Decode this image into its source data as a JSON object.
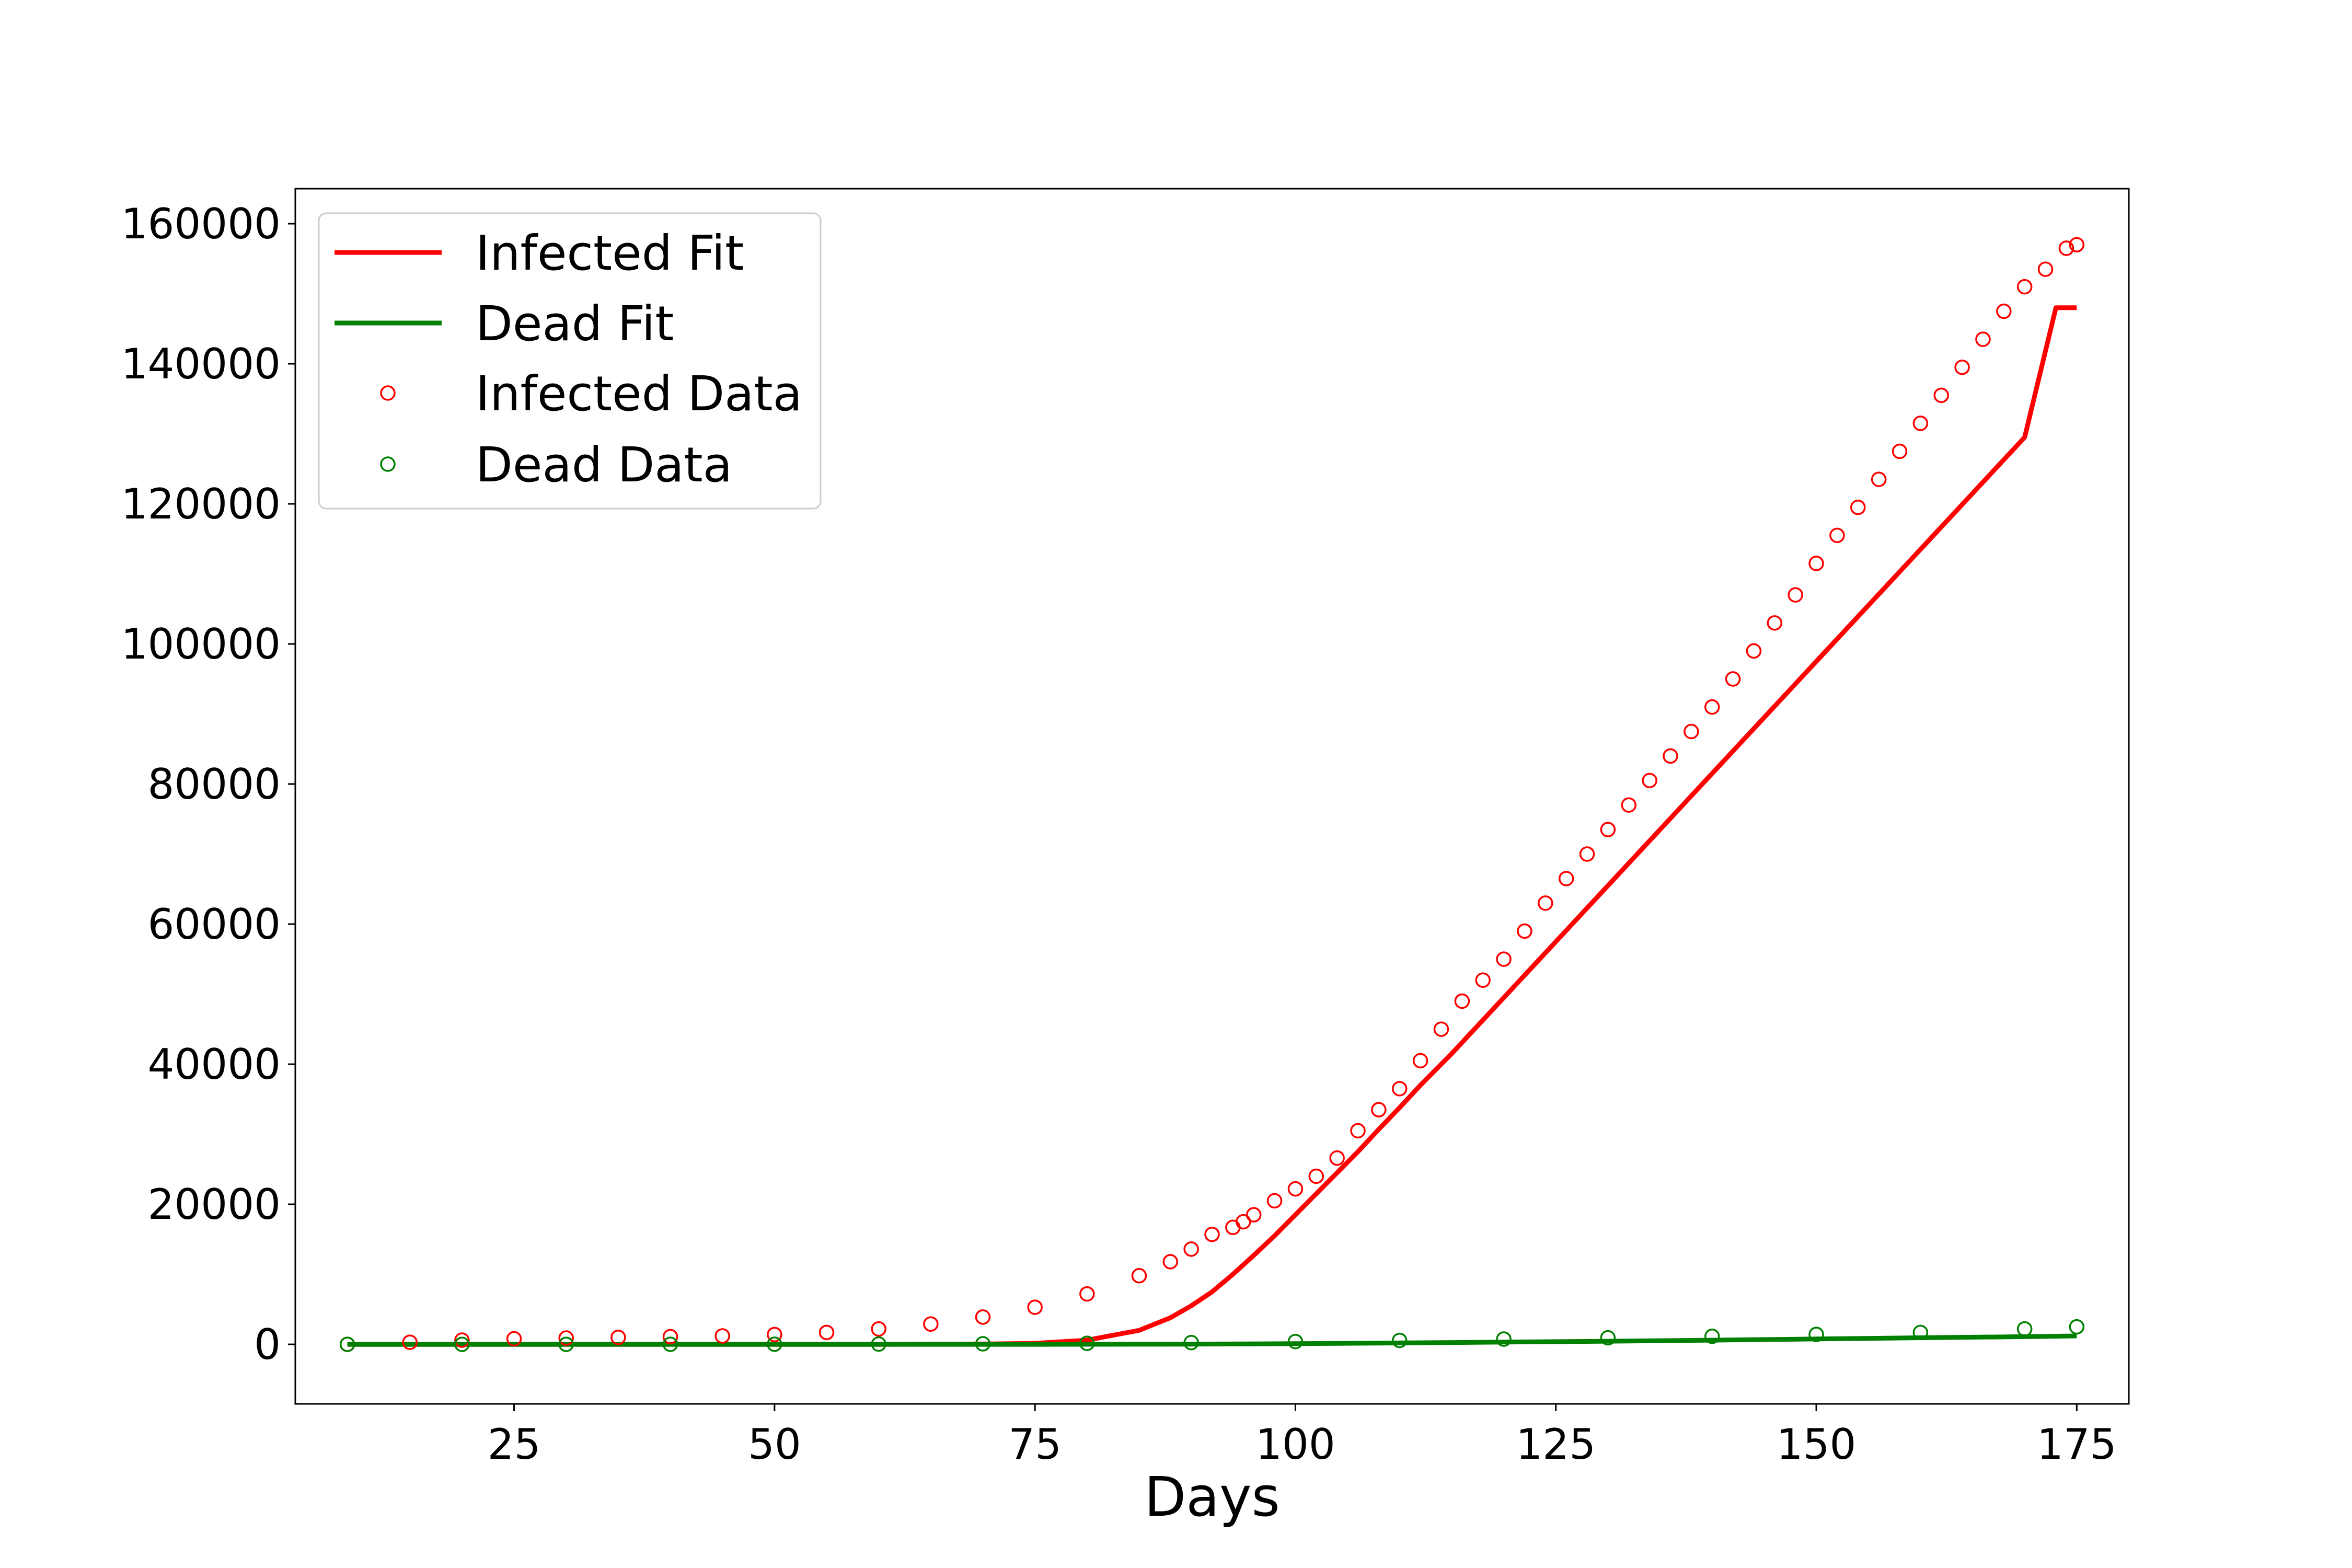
{
  "chart_data": {
    "type": "line",
    "title": "",
    "xlabel": "Days",
    "ylabel": "",
    "xlim": [
      4,
      180
    ],
    "ylim": [
      -8500,
      165000
    ],
    "xticks": [
      25,
      50,
      75,
      100,
      125,
      150,
      175
    ],
    "yticks": [
      0,
      20000,
      40000,
      60000,
      80000,
      100000,
      120000,
      140000,
      160000
    ],
    "grid": false,
    "legend_position": "top-left",
    "legend": [
      {
        "label": "Infected Fit",
        "kind": "line",
        "color": "#ff0000"
      },
      {
        "label": "Dead Fit",
        "kind": "line",
        "color": "#008000"
      },
      {
        "label": "Infected Data",
        "kind": "marker",
        "color": "#ff0000"
      },
      {
        "label": "Dead Data",
        "kind": "marker",
        "color": "#008000"
      }
    ],
    "series": [
      {
        "name": "Infected Fit",
        "kind": "line",
        "color": "#ff0000",
        "x": [
          9,
          20,
          40,
          60,
          70,
          75,
          80,
          85,
          88,
          90,
          92,
          94,
          96,
          98,
          100,
          102,
          104,
          106,
          108,
          110,
          112,
          115,
          120,
          125,
          130,
          135,
          140,
          145,
          150,
          155,
          160,
          165,
          170,
          173,
          175
        ],
        "y": [
          0,
          0,
          0,
          0,
          50,
          150,
          600,
          2000,
          3800,
          5500,
          7500,
          10000,
          12700,
          15500,
          18500,
          21500,
          24500,
          27500,
          30700,
          33800,
          37000,
          41500,
          49500,
          57500,
          65500,
          73500,
          81500,
          89500,
          97500,
          105500,
          113500,
          121500,
          129500,
          148000,
          148000
        ]
      },
      {
        "name": "Dead Fit",
        "kind": "line",
        "color": "#008000",
        "x": [
          9,
          25,
          50,
          75,
          90,
          100,
          110,
          120,
          130,
          140,
          150,
          160,
          170,
          175
        ],
        "y": [
          0,
          0,
          0,
          0,
          30,
          100,
          200,
          320,
          450,
          600,
          770,
          940,
          1100,
          1200
        ]
      },
      {
        "name": "Infected Data",
        "kind": "scatter",
        "color": "#ff0000",
        "x": [
          9,
          15,
          20,
          25,
          30,
          35,
          40,
          45,
          50,
          55,
          60,
          65,
          70,
          75,
          80,
          85,
          88,
          90,
          92,
          94,
          95,
          96,
          98,
          100,
          102,
          104,
          106,
          108,
          110,
          112,
          114,
          116,
          118,
          120,
          122,
          124,
          126,
          128,
          130,
          132,
          134,
          136,
          138,
          140,
          142,
          144,
          146,
          148,
          150,
          152,
          154,
          156,
          158,
          160,
          162,
          164,
          166,
          168,
          170,
          172,
          174,
          175
        ],
        "y": [
          0,
          300,
          600,
          800,
          900,
          1000,
          1100,
          1200,
          1400,
          1700,
          2200,
          2900,
          3900,
          5300,
          7200,
          9800,
          11800,
          13600,
          15700,
          16700,
          17500,
          18500,
          20500,
          22200,
          24000,
          26600,
          30500,
          33500,
          36500,
          40500,
          45000,
          49000,
          52000,
          55000,
          59000,
          63000,
          66500,
          70000,
          73500,
          77000,
          80500,
          84000,
          87500,
          91000,
          95000,
          99000,
          103000,
          107000,
          111500,
          115500,
          119500,
          123500,
          127500,
          131500,
          135500,
          139500,
          143500,
          147500,
          151000,
          153500,
          156500,
          157000
        ]
      },
      {
        "name": "Dead Data",
        "kind": "scatter",
        "color": "#008000",
        "x": [
          9,
          20,
          30,
          40,
          50,
          60,
          70,
          80,
          90,
          100,
          110,
          120,
          130,
          140,
          150,
          160,
          170,
          175
        ],
        "y": [
          0,
          0,
          0,
          10,
          20,
          40,
          80,
          150,
          250,
          400,
          560,
          750,
          930,
          1150,
          1420,
          1700,
          2200,
          2500
        ]
      }
    ]
  }
}
